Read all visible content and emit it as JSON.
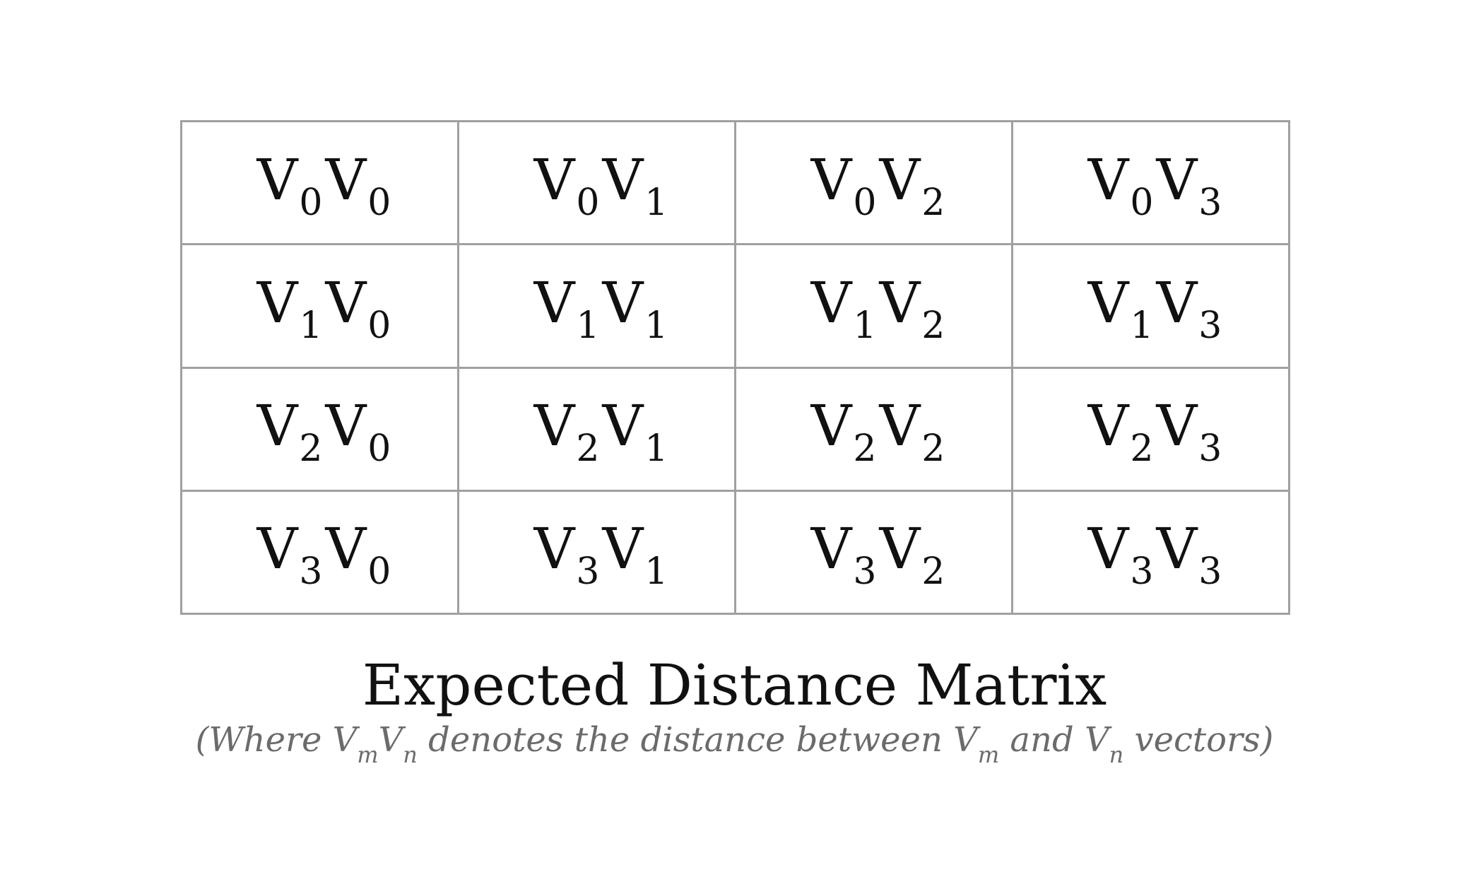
{
  "matrix": {
    "symbol": "V",
    "rows": [
      [
        {
          "a": "0",
          "b": "0"
        },
        {
          "a": "0",
          "b": "1"
        },
        {
          "a": "0",
          "b": "2"
        },
        {
          "a": "0",
          "b": "3"
        }
      ],
      [
        {
          "a": "1",
          "b": "0"
        },
        {
          "a": "1",
          "b": "1"
        },
        {
          "a": "1",
          "b": "2"
        },
        {
          "a": "1",
          "b": "3"
        }
      ],
      [
        {
          "a": "2",
          "b": "0"
        },
        {
          "a": "2",
          "b": "1"
        },
        {
          "a": "2",
          "b": "2"
        },
        {
          "a": "2",
          "b": "3"
        }
      ],
      [
        {
          "a": "3",
          "b": "0"
        },
        {
          "a": "3",
          "b": "1"
        },
        {
          "a": "3",
          "b": "2"
        },
        {
          "a": "3",
          "b": "3"
        }
      ]
    ],
    "border_color": "#a0a0a0"
  },
  "title": "Expected Distance Matrix",
  "caption": {
    "open": "(Where ",
    "v": "V",
    "m": "m",
    "n": "n",
    "middle1": " denotes the distance between ",
    "and": " and ",
    "end": " vectors)",
    "color": "#6b6b6b"
  }
}
